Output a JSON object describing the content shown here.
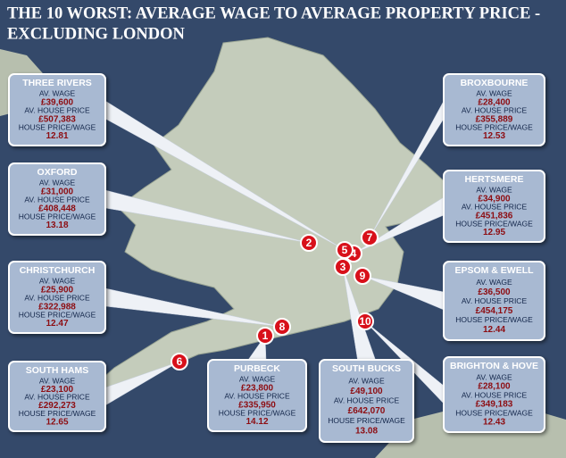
{
  "title": [
    "THE 10 WORST: AVERAGE WAGE TO AVERAGE PROPERTY PRICE -",
    "EXCLUDING LONDON"
  ],
  "labels": {
    "wage": "AV. WAGE",
    "price": "AV. HOUSE PRICE",
    "ratio": "HOUSE PRICE/WAGE"
  },
  "areas": [
    {
      "rank": "1",
      "name": "PURBECK",
      "wage": "£23,800",
      "price": "£335,950",
      "ratio": "14.12"
    },
    {
      "rank": "2",
      "name": "OXFORD",
      "wage": "£31,000",
      "price": "£408,448",
      "ratio": "13.18"
    },
    {
      "rank": "3",
      "name": "SOUTH BUCKS",
      "wage": "£49,100",
      "price": "£642,070",
      "ratio": "13.08"
    },
    {
      "rank": "4",
      "name": "HERTSMERE",
      "wage": "£34,900",
      "price": "£451,836",
      "ratio": "12.95"
    },
    {
      "rank": "5",
      "name": "THREE RIVERS",
      "wage": "£39,600",
      "price": "£507,383",
      "ratio": "12.81"
    },
    {
      "rank": "6",
      "name": "SOUTH HAMS",
      "wage": "£23,100",
      "price": "£292,273",
      "ratio": "12.65"
    },
    {
      "rank": "7",
      "name": "BROXBOURNE",
      "wage": "£28,400",
      "price": "£355,889",
      "ratio": "12.53"
    },
    {
      "rank": "8",
      "name": "CHRISTCHURCH",
      "wage": "£25,900",
      "price": "£322,988",
      "ratio": "12.47"
    },
    {
      "rank": "9",
      "name": "EPSOM & EWELL",
      "wage": "£36,500",
      "price": "£454,175",
      "ratio": "12.44"
    },
    {
      "rank": "10",
      "name": "BRIGHTON & HOVE",
      "wage": "£28,100",
      "price": "£349,183",
      "ratio": "12.43"
    }
  ]
}
